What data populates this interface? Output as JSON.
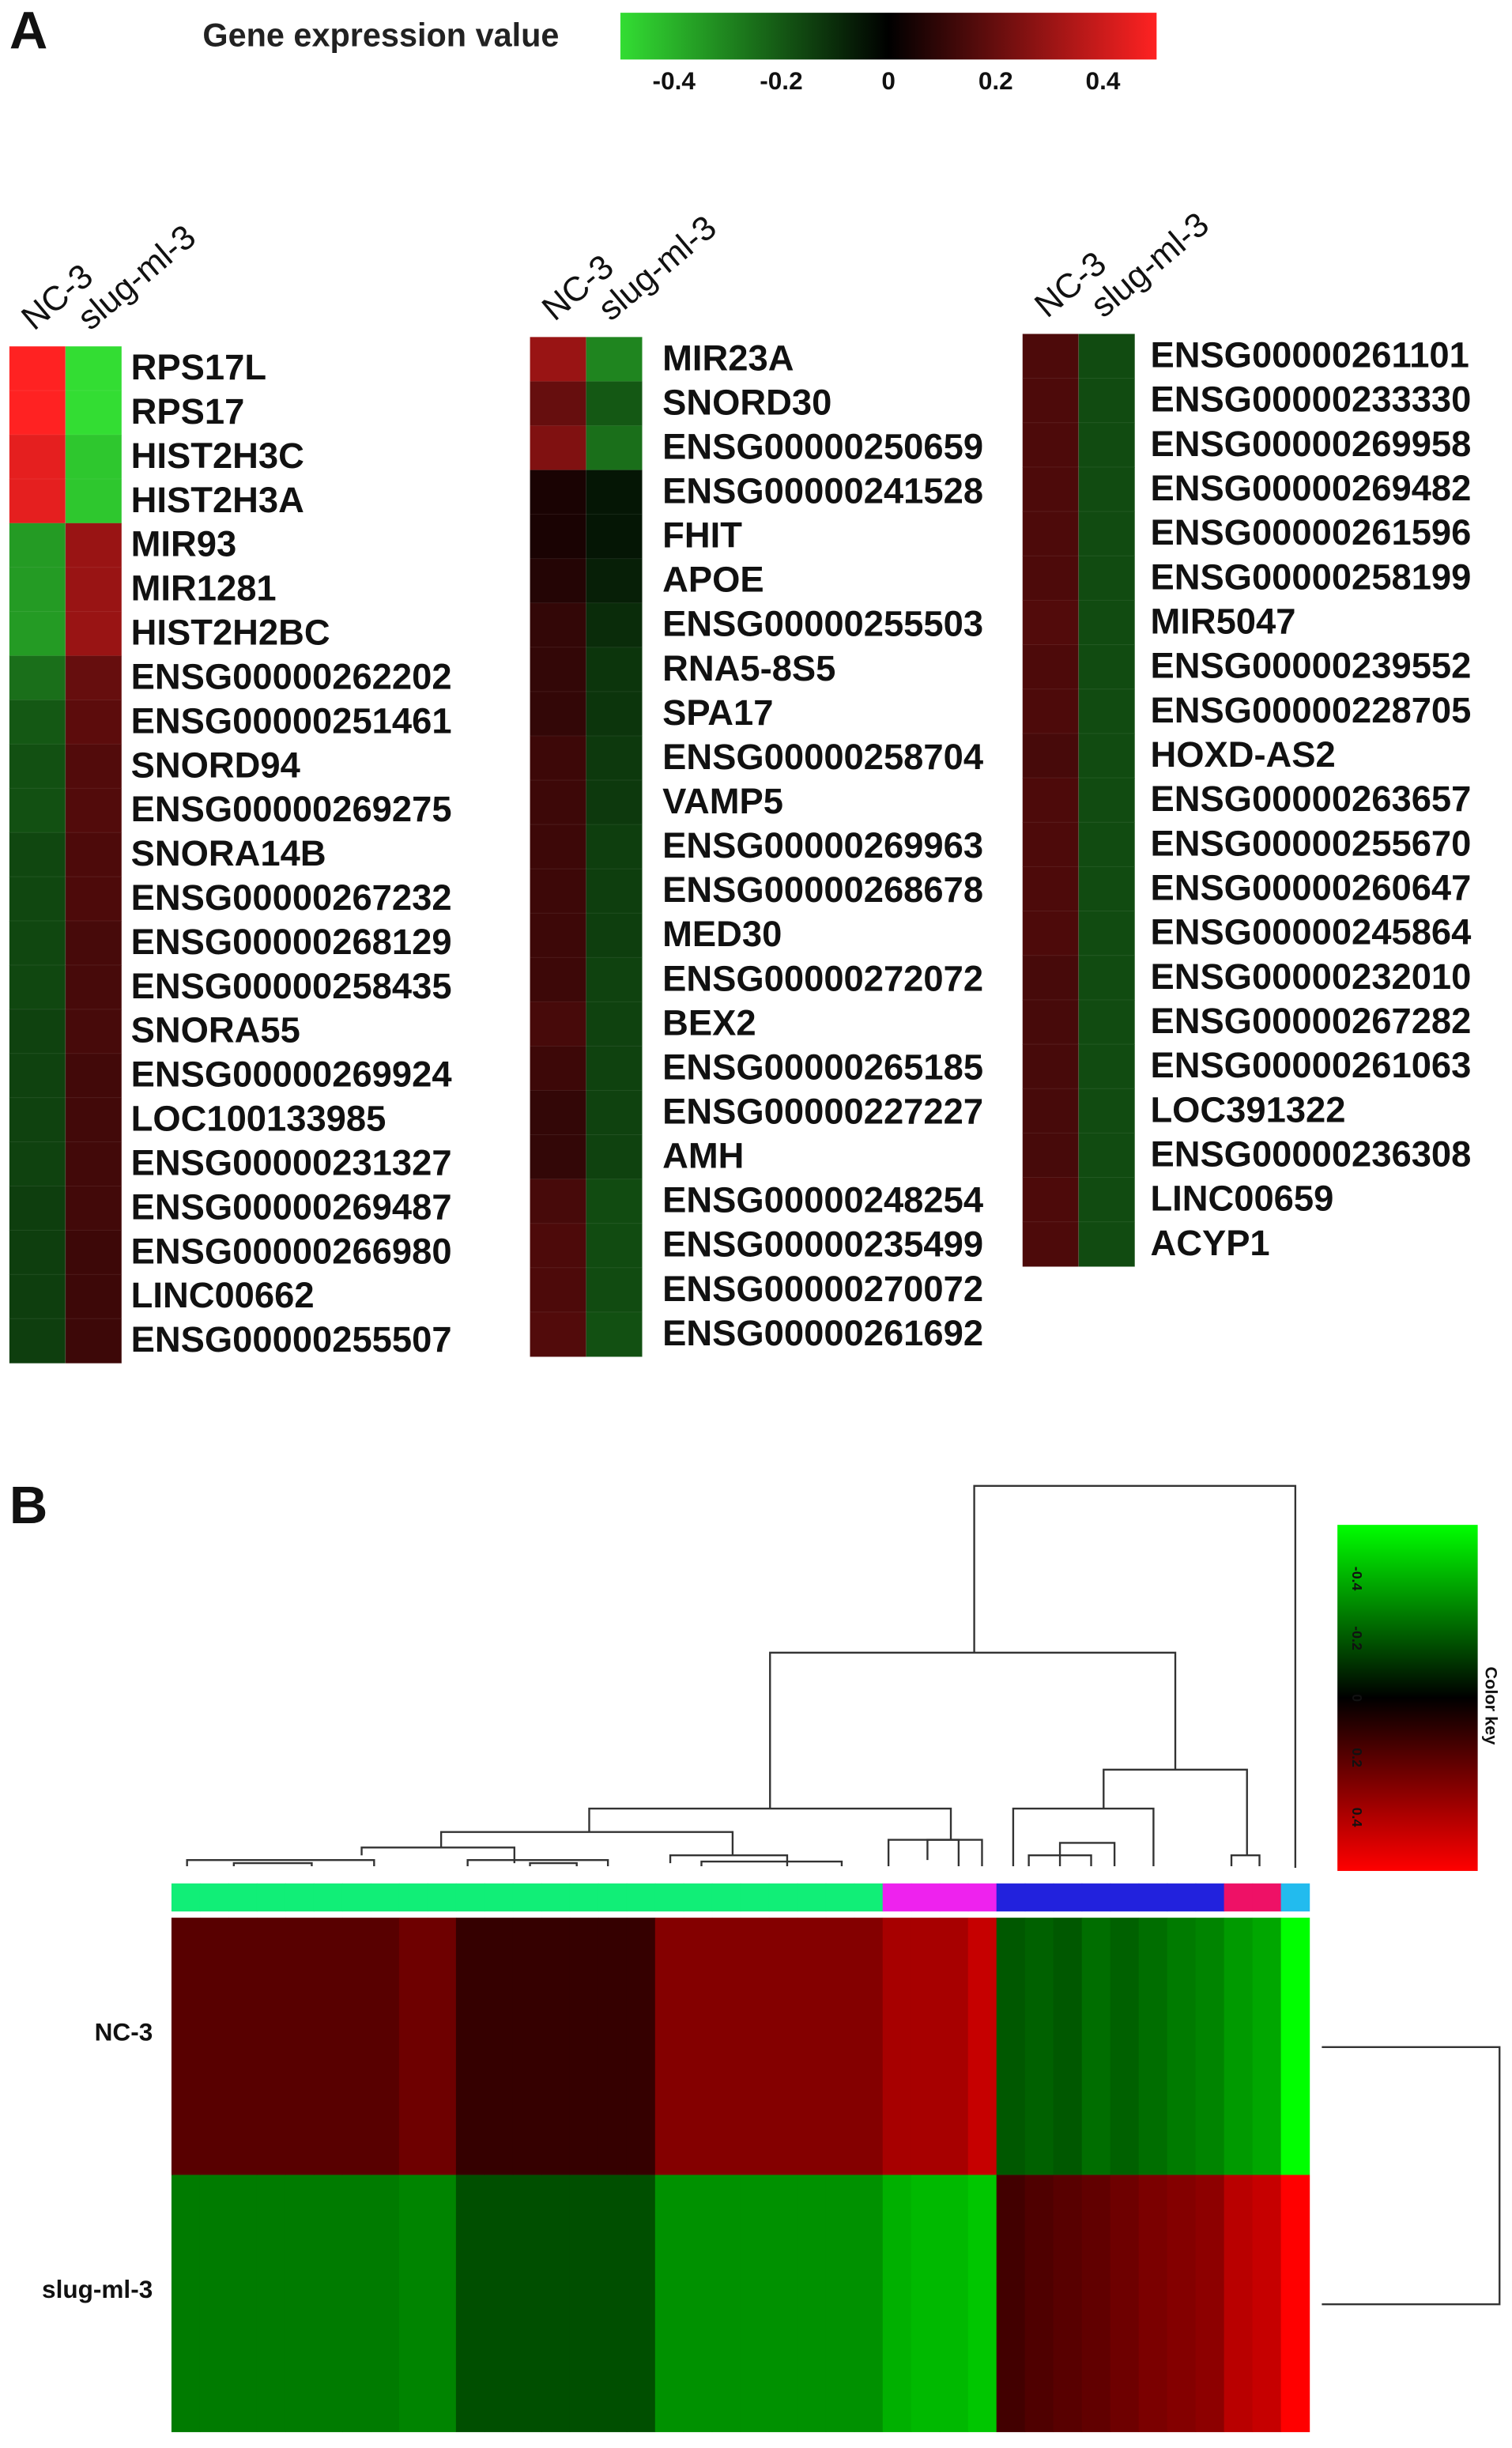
{
  "chart_data": [
    {
      "type": "heatmap",
      "panel": "A",
      "colorbar_title": "Gene expression value",
      "clim": [
        -0.5,
        0.5
      ],
      "cticks": [
        -0.4,
        -0.2,
        0,
        0.2,
        0.4
      ],
      "colormap": [
        "#33dd33",
        "#000000",
        "#ff2222"
      ],
      "columns": [
        "NC-3",
        "slug-ml-3"
      ],
      "rows": [
        "RPS17L",
        "RPS17",
        "HIST2H3C",
        "HIST2H3A",
        "MIR93",
        "MIR1281",
        "HIST2H2BC",
        "ENSG00000262202",
        "ENSG00000251461",
        "SNORD94",
        "ENSG00000269275",
        "SNORA14B",
        "ENSG00000267232",
        "ENSG00000268129",
        "ENSG00000258435",
        "SNORA55",
        "ENSG00000269924",
        "LOC100133985",
        "ENSG00000231327",
        "ENSG00000269487",
        "ENSG00000266980",
        "LINC00662",
        "ENSG00000255507"
      ],
      "values": [
        [
          0.5,
          -0.5
        ],
        [
          0.5,
          -0.5
        ],
        [
          0.45,
          -0.45
        ],
        [
          0.45,
          -0.45
        ],
        [
          -0.35,
          0.3
        ],
        [
          -0.35,
          0.3
        ],
        [
          -0.35,
          0.3
        ],
        [
          -0.25,
          0.2
        ],
        [
          -0.2,
          0.18
        ],
        [
          -0.18,
          0.16
        ],
        [
          -0.18,
          0.16
        ],
        [
          -0.16,
          0.15
        ],
        [
          -0.16,
          0.15
        ],
        [
          -0.16,
          0.14
        ],
        [
          -0.16,
          0.14
        ],
        [
          -0.15,
          0.14
        ],
        [
          -0.15,
          0.13
        ],
        [
          -0.15,
          0.13
        ],
        [
          -0.15,
          0.13
        ],
        [
          -0.14,
          0.13
        ],
        [
          -0.14,
          0.12
        ],
        [
          -0.14,
          0.12
        ],
        [
          -0.14,
          0.12
        ]
      ]
    },
    {
      "type": "heatmap",
      "columns": [
        "NC-3",
        "slug-ml-3"
      ],
      "colormap": [
        "#33dd33",
        "#000000",
        "#ff2222"
      ],
      "clim": [
        -0.5,
        0.5
      ],
      "rows": [
        "MIR23A",
        "SNORD30",
        "ENSG00000250659",
        "ENSG00000241528",
        "FHIT",
        "APOE",
        "ENSG00000255503",
        "RNA5-8S5",
        "SPA17",
        "ENSG00000258704",
        "VAMP5",
        "ENSG00000269963",
        "ENSG00000268678",
        "MED30",
        "ENSG00000272072",
        "BEX2",
        "ENSG00000265185",
        "ENSG00000227227",
        "AMH",
        "ENSG00000248254",
        "ENSG00000235499",
        "ENSG00000270072",
        "ENSG00000261692"
      ],
      "values": [
        [
          0.3,
          -0.3
        ],
        [
          0.2,
          -0.2
        ],
        [
          0.25,
          -0.25
        ],
        [
          0.05,
          -0.05
        ],
        [
          0.05,
          -0.05
        ],
        [
          0.07,
          -0.07
        ],
        [
          0.1,
          -0.1
        ],
        [
          0.1,
          -0.12
        ],
        [
          0.1,
          -0.12
        ],
        [
          0.12,
          -0.13
        ],
        [
          0.12,
          -0.13
        ],
        [
          0.12,
          -0.14
        ],
        [
          0.12,
          -0.14
        ],
        [
          0.12,
          -0.14
        ],
        [
          0.12,
          -0.15
        ],
        [
          0.14,
          -0.15
        ],
        [
          0.12,
          -0.15
        ],
        [
          0.1,
          -0.15
        ],
        [
          0.1,
          -0.15
        ],
        [
          0.14,
          -0.17
        ],
        [
          0.15,
          -0.17
        ],
        [
          0.15,
          -0.17
        ],
        [
          0.16,
          -0.18
        ]
      ]
    },
    {
      "type": "heatmap",
      "columns": [
        "NC-3",
        "slug-ml-3"
      ],
      "colormap": [
        "#33dd33",
        "#000000",
        "#ff2222"
      ],
      "clim": [
        -0.5,
        0.5
      ],
      "rows": [
        "ENSG00000261101",
        "ENSG00000233330",
        "ENSG00000269958",
        "ENSG00000269482",
        "ENSG00000261596",
        "ENSG00000258199",
        "MIR5047",
        "ENSG00000239552",
        "ENSG00000228705",
        "HOXD-AS2",
        "ENSG00000263657",
        "ENSG00000255670",
        "ENSG00000260647",
        "ENSG00000245864",
        "ENSG00000232010",
        "ENSG00000267282",
        "ENSG00000261063",
        "LOC391322",
        "ENSG00000236308",
        "LINC00659",
        "ACYP1"
      ],
      "values": [
        [
          0.15,
          -0.17
        ],
        [
          0.15,
          -0.17
        ],
        [
          0.15,
          -0.17
        ],
        [
          0.15,
          -0.17
        ],
        [
          0.15,
          -0.17
        ],
        [
          0.15,
          -0.17
        ],
        [
          0.16,
          -0.17
        ],
        [
          0.15,
          -0.17
        ],
        [
          0.15,
          -0.17
        ],
        [
          0.14,
          -0.17
        ],
        [
          0.15,
          -0.17
        ],
        [
          0.15,
          -0.17
        ],
        [
          0.15,
          -0.17
        ],
        [
          0.15,
          -0.17
        ],
        [
          0.14,
          -0.17
        ],
        [
          0.14,
          -0.17
        ],
        [
          0.14,
          -0.17
        ],
        [
          0.14,
          -0.17
        ],
        [
          0.14,
          -0.17
        ],
        [
          0.15,
          -0.17
        ],
        [
          0.15,
          -0.17
        ]
      ]
    },
    {
      "type": "clustermap",
      "panel": "B",
      "colorbar_title": "Color key",
      "clim": [
        -0.58,
        0.58
      ],
      "cticks": [
        -0.4,
        -0.2,
        0,
        0.2,
        0.4
      ],
      "colormap": [
        "#00ff00",
        "#000000",
        "#ff0000"
      ],
      "rows": [
        "NC-3",
        "slug-ml-3"
      ],
      "column_colors": [
        "#11ee77",
        "#11ee77",
        "#11ee77",
        "#11ee77",
        "#11ee77",
        "#11ee77",
        "#11ee77",
        "#11ee77",
        "#11ee77",
        "#11ee77",
        "#11ee77",
        "#11ee77",
        "#11ee77",
        "#11ee77",
        "#11ee77",
        "#11ee77",
        "#11ee77",
        "#11ee77",
        "#11ee77",
        "#11ee77",
        "#11ee77",
        "#11ee77",
        "#11ee77",
        "#11ee77",
        "#11ee77",
        "#ee22ee",
        "#ee22ee",
        "#ee22ee",
        "#ee22ee",
        "#2222dd",
        "#2222dd",
        "#2222dd",
        "#2222dd",
        "#2222dd",
        "#2222dd",
        "#2222dd",
        "#2222dd",
        "#ee1166",
        "#ee1166",
        "#22bbee"
      ],
      "values": [
        [
          0.2,
          0.2,
          0.2,
          0.2,
          0.2,
          0.2,
          0.2,
          0.2,
          0.25,
          0.25,
          0.12,
          0.12,
          0.12,
          0.12,
          0.12,
          0.12,
          0.12,
          0.3,
          0.3,
          0.3,
          0.3,
          0.3,
          0.3,
          0.3,
          0.3,
          0.38,
          0.38,
          0.38,
          0.45,
          -0.2,
          -0.22,
          -0.2,
          -0.25,
          -0.22,
          -0.25,
          -0.28,
          -0.3,
          -0.35,
          -0.38,
          -0.58
        ],
        [
          -0.28,
          -0.28,
          -0.28,
          -0.28,
          -0.28,
          -0.28,
          -0.28,
          -0.28,
          -0.3,
          -0.3,
          -0.18,
          -0.18,
          -0.18,
          -0.18,
          -0.18,
          -0.18,
          -0.18,
          -0.33,
          -0.33,
          -0.33,
          -0.33,
          -0.33,
          -0.33,
          -0.33,
          -0.33,
          -0.4,
          -0.42,
          -0.42,
          -0.45,
          0.15,
          0.18,
          0.2,
          0.22,
          0.25,
          0.28,
          0.3,
          0.32,
          0.42,
          0.45,
          0.58
        ]
      ]
    }
  ]
}
